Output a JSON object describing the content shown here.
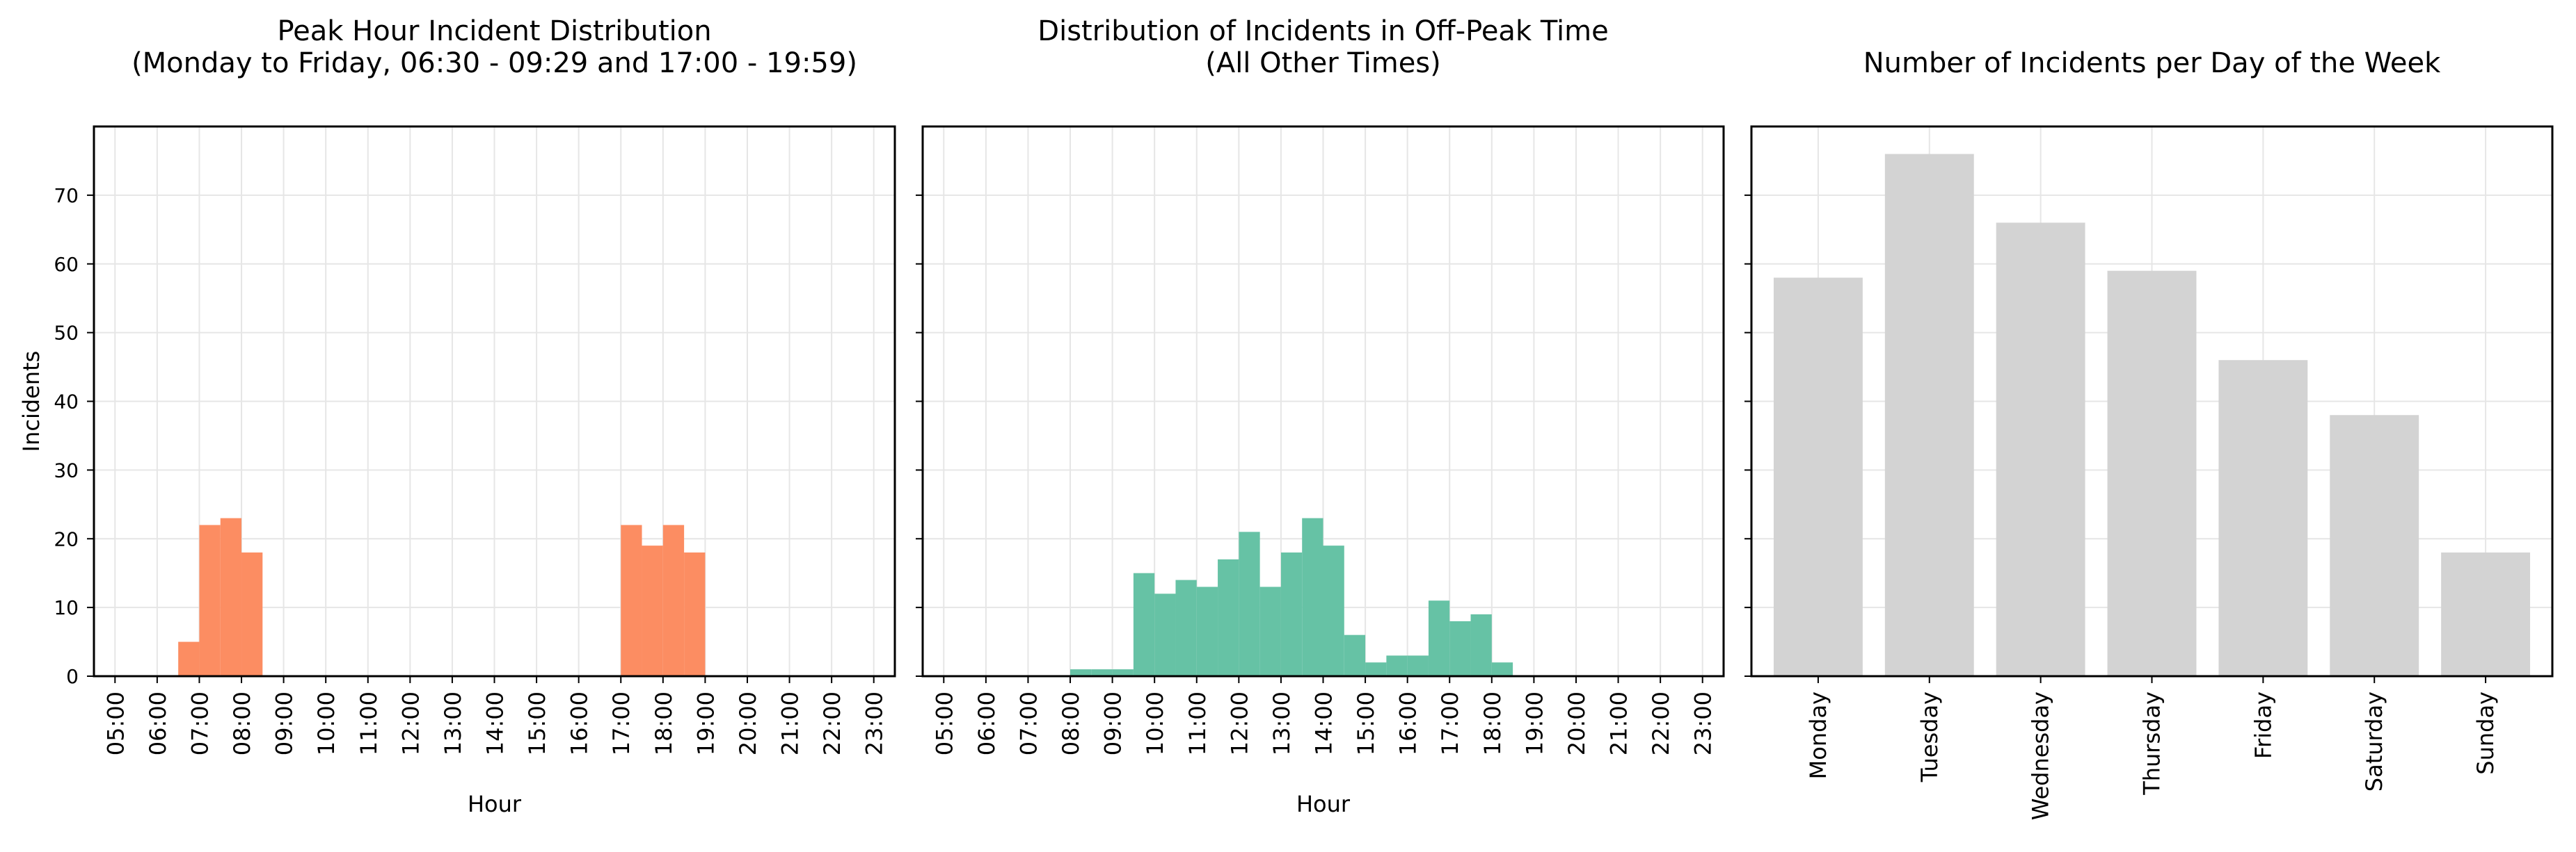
{
  "chart_data": [
    {
      "type": "bar",
      "title_lines": [
        "Peak Hour Incident Distribution",
        "(Monday to Friday, 06:30 - 09:29 and 17:00 - 19:59)"
      ],
      "xlabel": "Hour",
      "ylabel": "Incidents",
      "color": "#fc8d62",
      "ylim": [
        0,
        80
      ],
      "yticks": [
        0,
        10,
        20,
        30,
        40,
        50,
        60,
        70
      ],
      "xlim": [
        4.5,
        23.5
      ],
      "xticks": [
        "05:00",
        "06:00",
        "07:00",
        "08:00",
        "09:00",
        "10:00",
        "11:00",
        "12:00",
        "13:00",
        "14:00",
        "15:00",
        "16:00",
        "17:00",
        "18:00",
        "19:00",
        "20:00",
        "21:00",
        "22:00",
        "23:00"
      ],
      "bin_width": 0.5,
      "bin_starts": [
        6.5,
        7.0,
        7.5,
        8.0,
        8.5,
        9.0,
        17.0,
        17.5,
        18.0,
        18.5,
        19.0,
        19.5
      ],
      "values": [
        5,
        22,
        23,
        18,
        0,
        0,
        22,
        19,
        22,
        18,
        0,
        0
      ],
      "grid": true
    },
    {
      "type": "bar",
      "title_lines": [
        "Distribution of Incidents in Off-Peak Time",
        "(All Other Times)"
      ],
      "xlabel": "Hour",
      "ylabel": "",
      "color": "#66c2a5",
      "ylim": [
        0,
        80
      ],
      "xlim": [
        4.5,
        23.5
      ],
      "xticks": [
        "05:00",
        "06:00",
        "07:00",
        "08:00",
        "09:00",
        "10:00",
        "11:00",
        "12:00",
        "13:00",
        "14:00",
        "15:00",
        "16:00",
        "17:00",
        "18:00",
        "19:00",
        "20:00",
        "21:00",
        "22:00",
        "23:00"
      ],
      "bin_width": 0.5,
      "bin_starts": [
        8.0,
        8.5,
        9.0,
        9.5,
        10.0,
        10.5,
        11.0,
        11.5,
        12.0,
        12.5,
        13.0,
        13.5,
        14.0,
        14.5,
        15.0,
        15.5,
        16.0,
        16.5,
        17.0,
        17.5,
        18.0,
        18.5,
        19.0,
        19.5,
        20.0,
        20.5,
        21.0,
        21.5,
        22.0,
        22.5
      ],
      "values": [
        1,
        1,
        1,
        15,
        12,
        14,
        13,
        17,
        21,
        13,
        18,
        23,
        19,
        6,
        2,
        3,
        3,
        11,
        8,
        9,
        2,
        0,
        0,
        0,
        0,
        0,
        0,
        0,
        0,
        0
      ],
      "grid": true
    },
    {
      "type": "bar",
      "title_lines": [
        "Number of Incidents per Day of the Week"
      ],
      "xlabel": "",
      "ylabel": "",
      "color": "#d3d3d3",
      "ylim": [
        0,
        80
      ],
      "categories": [
        "Monday",
        "Tuesday",
        "Wednesday",
        "Thursday",
        "Friday",
        "Saturday",
        "Sunday"
      ],
      "values": [
        58,
        76,
        66,
        59,
        46,
        38,
        18
      ],
      "grid": true
    }
  ]
}
